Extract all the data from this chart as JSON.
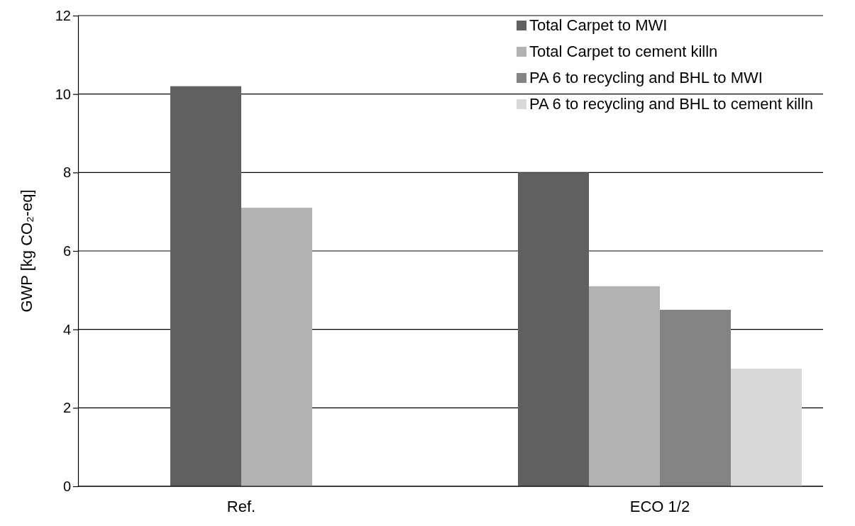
{
  "chart_data": {
    "type": "bar",
    "ylabel": "GWP [kg CO₂-eq]",
    "categories": [
      "Ref.",
      "ECO 1/2"
    ],
    "series": [
      {
        "name": "Total Carpet to MWI",
        "color": "#606060",
        "values": [
          10.2,
          8.0
        ]
      },
      {
        "name": "Total Carpet to cement killn",
        "color": "#b2b2b2",
        "values": [
          7.1,
          5.1
        ]
      },
      {
        "name": "PA 6 to recycling and BHL to MWI",
        "color": "#838383",
        "values": [
          null,
          4.5
        ]
      },
      {
        "name": "PA 6 to recycling and BHL to cement killn",
        "color": "#d9d9d9",
        "values": [
          null,
          3.0
        ]
      }
    ],
    "ylim": [
      0,
      12
    ],
    "yticks": [
      0,
      2,
      4,
      6,
      8,
      10,
      12
    ],
    "grid": "y",
    "legend": "top right"
  }
}
